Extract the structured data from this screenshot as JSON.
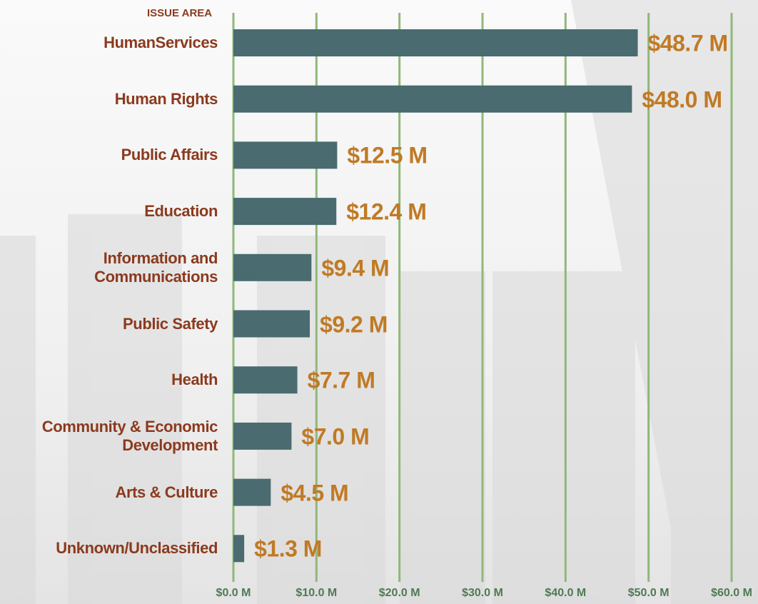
{
  "chart_data": {
    "type": "barh",
    "axis_label": "ISSUE AREA",
    "categories": [
      "HumanServices",
      "Human Rights",
      "Public Affairs",
      "Education",
      "Information and Communications",
      "Public Safety",
      "Health",
      "Community & Economic Development",
      "Arts & Culture",
      "Unknown/Unclassified"
    ],
    "values": [
      48.7,
      48.0,
      12.5,
      12.4,
      9.4,
      9.2,
      7.7,
      7.0,
      4.5,
      1.3
    ],
    "value_labels": [
      "$48.7 M",
      "$48.0 M",
      "$12.5 M",
      "$12.4 M",
      "$9.4 M",
      "$9.2 M",
      "$7.7 M",
      "$7.0 M",
      "$4.5 M",
      "$1.3 M"
    ],
    "color": "#4a6b70",
    "xlim": [
      0,
      60
    ],
    "xticks": [
      {
        "value": 0,
        "label": "$0.0 M"
      },
      {
        "value": 10,
        "label": "$10.0 M"
      },
      {
        "value": 20,
        "label": "$20.0 M"
      },
      {
        "value": 30,
        "label": "$30.0 M"
      },
      {
        "value": 40,
        "label": "$40.0 M"
      },
      {
        "value": 50,
        "label": "$50.0 M"
      },
      {
        "value": 60,
        "label": "$60.0 M"
      }
    ],
    "grid": true
  }
}
